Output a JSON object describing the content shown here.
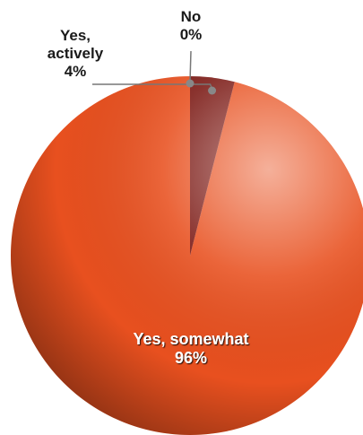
{
  "chart_data": {
    "type": "pie",
    "title": "",
    "slices": [
      {
        "label_lines": [
          "Yes, somewhat"
        ],
        "value": 96,
        "value_label": "96%",
        "color": "#e8501f"
      },
      {
        "label_lines": [
          "Yes,",
          "actively"
        ],
        "value": 4,
        "value_label": "4%",
        "color": "#7a1712"
      },
      {
        "label_lines": [
          "No"
        ],
        "value": 0,
        "value_label": "0%",
        "color": "#b0b0b0"
      }
    ],
    "start_angle_deg": 0,
    "direction": "clockwise",
    "legend": "none"
  }
}
